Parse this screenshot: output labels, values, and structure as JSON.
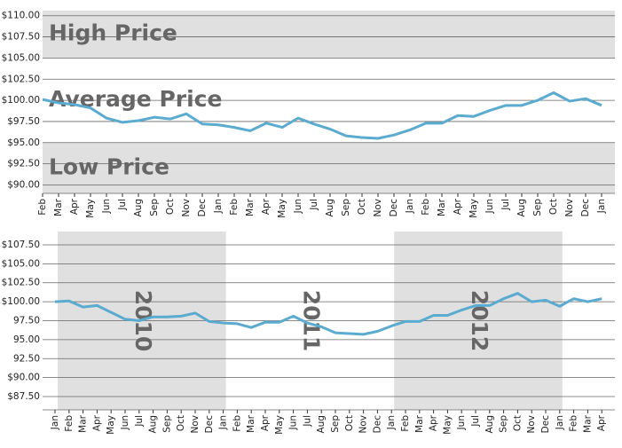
{
  "chart_data": [
    {
      "type": "line",
      "color": "#5aabcf",
      "categories": [
        "Feb",
        "Mar",
        "Apr",
        "May",
        "Jun",
        "Jul",
        "Aug",
        "Sep",
        "Oct",
        "Nov",
        "Dec",
        "Jan",
        "Feb",
        "Mar",
        "Apr",
        "May",
        "Jun",
        "Jul",
        "Aug",
        "Sep",
        "Oct",
        "Nov",
        "Dec",
        "Jan",
        "Feb",
        "Mar",
        "Apr",
        "May",
        "Jun",
        "Jul",
        "Aug",
        "Sep",
        "Oct",
        "Nov",
        "Dec",
        "Jan"
      ],
      "values": [
        100.1,
        99.7,
        99.5,
        99.1,
        97.9,
        97.4,
        97.6,
        98.0,
        97.8,
        98.4,
        97.2,
        97.1,
        96.8,
        96.4,
        97.3,
        96.8,
        97.9,
        97.2,
        96.6,
        95.8,
        95.6,
        95.5,
        95.9,
        96.5,
        97.3,
        97.3,
        98.2,
        98.1,
        98.8,
        99.4,
        99.4,
        100.0,
        100.9,
        99.9,
        100.2,
        99.4
      ],
      "ylim": [
        89,
        110.6
      ],
      "yticks": [
        {
          "value": 110,
          "label": "$110.00"
        },
        {
          "value": 107.5,
          "label": "$107.50"
        },
        {
          "value": 105,
          "label": "$105.00"
        },
        {
          "value": 102.5,
          "label": "$102.50"
        },
        {
          "value": 100,
          "label": "$100.00"
        },
        {
          "value": 97.5,
          "label": "$97.50"
        },
        {
          "value": 95,
          "label": "$95.00"
        },
        {
          "value": 92.5,
          "label": "$92.50"
        },
        {
          "value": 90,
          "label": "$90.00"
        }
      ],
      "y_bands": [
        {
          "label": "High Price",
          "range": [
            105,
            110.6
          ],
          "shaded": true
        },
        {
          "label": "Average Price",
          "range": [
            95,
            105
          ],
          "shaded": false
        },
        {
          "label": "Low Price",
          "range": [
            89,
            95
          ],
          "shaded": true
        }
      ]
    },
    {
      "type": "line",
      "color": "#5aabcf",
      "categories": [
        "Jan",
        "Feb",
        "Mar",
        "Apr",
        "May",
        "Jun",
        "Jul",
        "Aug",
        "Sep",
        "Oct",
        "Nov",
        "Dec",
        "Jan",
        "Feb",
        "Mar",
        "Apr",
        "May",
        "Jun",
        "Jul",
        "Aug",
        "Sep",
        "Oct",
        "Nov",
        "Dec",
        "Jan",
        "Feb",
        "Mar",
        "Apr",
        "May",
        "Jun",
        "Jul",
        "Aug",
        "Sep",
        "Oct",
        "Nov",
        "Dec",
        "Jan",
        "Feb",
        "Mar",
        "Apr"
      ],
      "values": [
        100.0,
        100.1,
        99.3,
        99.5,
        98.6,
        97.7,
        97.5,
        98.0,
        98.0,
        98.1,
        98.5,
        97.4,
        97.2,
        97.1,
        96.6,
        97.3,
        97.3,
        98.1,
        97.2,
        96.7,
        95.9,
        95.8,
        95.7,
        96.1,
        96.8,
        97.4,
        97.4,
        98.2,
        98.2,
        98.9,
        99.5,
        99.5,
        100.4,
        101.1,
        100.0,
        100.2,
        99.4,
        100.4,
        100.0,
        100.4
      ],
      "ylim": [
        85.75,
        109.25
      ],
      "yticks": [
        {
          "value": 107.5,
          "label": "$107.50"
        },
        {
          "value": 105,
          "label": "$105.00"
        },
        {
          "value": 102.5,
          "label": "$102.50"
        },
        {
          "value": 100,
          "label": "$100.00"
        },
        {
          "value": 97.5,
          "label": "97.50"
        },
        {
          "value": 95,
          "label": "95.00"
        },
        {
          "value": 92.5,
          "label": "92.50"
        },
        {
          "value": 90,
          "label": "$90.00"
        },
        {
          "value": 87.5,
          "label": "$87.50"
        }
      ],
      "x_bands": [
        {
          "label": "2010",
          "shaded": true
        },
        {
          "label": "2011",
          "shaded": false
        },
        {
          "label": "2012",
          "shaded": true
        }
      ]
    }
  ]
}
